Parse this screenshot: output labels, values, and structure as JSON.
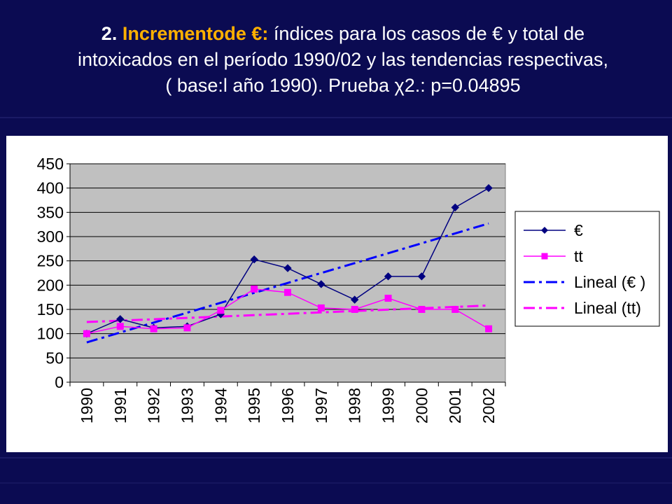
{
  "slide": {
    "title_num": "2.",
    "title_highlight": "Incrementode €:",
    "title_line1_rest": "índices para los casos de € y total de",
    "title_line2": "intoxicados en el período 1990/02 y  las tendencias respectivas,",
    "title_line3": "( base:l año 1990).  Prueba χ2.: p=0.04895"
  },
  "colors": {
    "background": "#0b0b52",
    "plot_area": "#c0c0c0",
    "series_euro": "#000080",
    "series_tt": "#ff00ff",
    "trend_euro": "#0000ff",
    "trend_tt": "#ff00ff"
  },
  "chart_data": {
    "type": "line",
    "categories": [
      "1990",
      "1991",
      "1992",
      "1993",
      "1994",
      "1995",
      "1996",
      "1997",
      "1998",
      "1999",
      "2000",
      "2001",
      "2002"
    ],
    "series": [
      {
        "name": "€",
        "marker": "diamond",
        "values": [
          100,
          130,
          112,
          115,
          140,
          253,
          235,
          202,
          170,
          218,
          218,
          360,
          400
        ]
      },
      {
        "name": "tt",
        "marker": "square",
        "values": [
          100,
          115,
          110,
          112,
          148,
          192,
          185,
          153,
          150,
          173,
          150,
          150,
          110
        ]
      }
    ],
    "trendlines": [
      {
        "name": "Lineal (€ )",
        "start": 82,
        "end": 327
      },
      {
        "name": "Lineal (tt)",
        "start": 124,
        "end": 158
      }
    ],
    "yticks": [
      "0",
      "50",
      "100",
      "150",
      "200",
      "250",
      "300",
      "350",
      "400",
      "450"
    ],
    "ylim": [
      0,
      450
    ],
    "grid": "horizontal",
    "legend_position": "right"
  }
}
